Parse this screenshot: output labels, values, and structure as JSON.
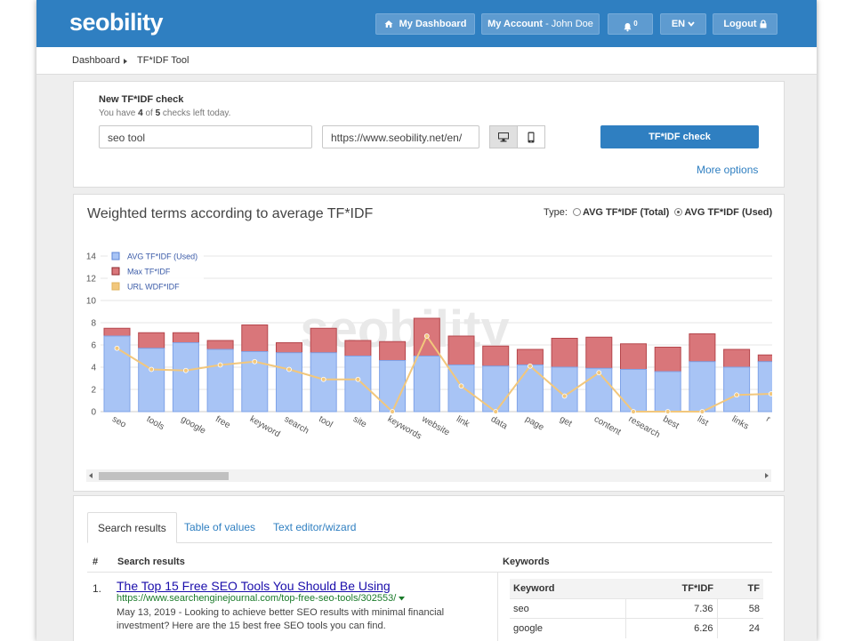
{
  "header": {
    "logo": "seobility",
    "dashboard_label": "My Dashboard",
    "account_label": "My Account",
    "account_user": " - John Doe",
    "notification_count": "0",
    "language": "EN",
    "logout_label": "Logout"
  },
  "breadcrumb": {
    "items": [
      "Dashboard",
      "TF*IDF Tool"
    ]
  },
  "check": {
    "title": "New TF*IDF check",
    "checks_prefix": "You have ",
    "checks_left": "4",
    "checks_mid": " of ",
    "checks_total": "5",
    "checks_suffix": " checks left today.",
    "keyword_value": "seo tool",
    "url_value": "https://www.seobility.net/en/",
    "submit_label": "TF*IDF check",
    "more_options": "More options",
    "device_desktop_icon": "desktop-icon",
    "device_mobile_icon": "mobile-icon"
  },
  "chart_panel": {
    "title": "Weighted terms according to average TF*IDF",
    "type_label": "Type:",
    "option_total": "AVG TF*IDF (Total)",
    "option_used": "AVG TF*IDF (Used)",
    "selected_option": "AVG TF*IDF (Used)",
    "watermark": "seobility"
  },
  "chart_data": {
    "type": "bar",
    "categories": [
      "seo",
      "tools",
      "google",
      "free",
      "keyword",
      "search",
      "tool",
      "site",
      "keywords",
      "website",
      "link",
      "data",
      "page",
      "get",
      "content",
      "research",
      "best",
      "list",
      "links",
      "r"
    ],
    "series": [
      {
        "name": "AVG TF*IDF (Used)",
        "kind": "stacked-bar",
        "color": "#a8c4f5",
        "values": [
          6.8,
          5.7,
          6.2,
          5.6,
          5.4,
          5.3,
          5.3,
          5.0,
          4.6,
          5.0,
          4.2,
          4.1,
          4.2,
          4.0,
          3.9,
          3.8,
          3.6,
          4.5,
          4.0,
          4.5
        ]
      },
      {
        "name": "Max TF*IDF",
        "kind": "stacked-bar",
        "color": "#d9767a",
        "values": [
          7.5,
          7.1,
          7.1,
          6.4,
          7.8,
          6.2,
          7.5,
          6.4,
          6.3,
          8.4,
          6.8,
          5.9,
          5.6,
          6.6,
          6.7,
          6.1,
          5.8,
          7.0,
          5.6,
          5.1
        ]
      },
      {
        "name": "URL WDF*IDF",
        "kind": "line",
        "color": "#f2c77c",
        "values": [
          5.7,
          3.8,
          3.7,
          4.2,
          4.5,
          3.8,
          2.9,
          2.9,
          0.0,
          6.8,
          2.3,
          0.0,
          4.1,
          1.4,
          3.5,
          0.0,
          0.0,
          0.0,
          1.5,
          1.6
        ]
      }
    ],
    "yticks": [
      0,
      2,
      4,
      6,
      8,
      10,
      12,
      14
    ],
    "ylim": [
      0,
      14
    ],
    "legend_position": "top-left",
    "grid": true
  },
  "results": {
    "tabs": [
      "Search results",
      "Table of values",
      "Text editor/wizard"
    ],
    "active_tab": "Search results",
    "col_num": "#",
    "col_results": "Search results",
    "col_keywords": "Keywords",
    "items": [
      {
        "num": "1.",
        "title": "The Top 15 Free SEO Tools You Should Be Using",
        "url": "https://www.searchenginejournal.com/top-free-seo-tools/302553/",
        "desc": "May 13, 2019 - Looking to achieve better SEO results with minimal financial investment? Here are the 15 best free SEO tools you can find."
      }
    ],
    "kw_table": {
      "headers": [
        "Keyword",
        "TF*IDF",
        "TF"
      ],
      "rows": [
        {
          "keyword": "seo",
          "tfidf": "7.36",
          "tf": "58"
        },
        {
          "keyword": "google",
          "tfidf": "6.26",
          "tf": "24"
        }
      ]
    }
  }
}
